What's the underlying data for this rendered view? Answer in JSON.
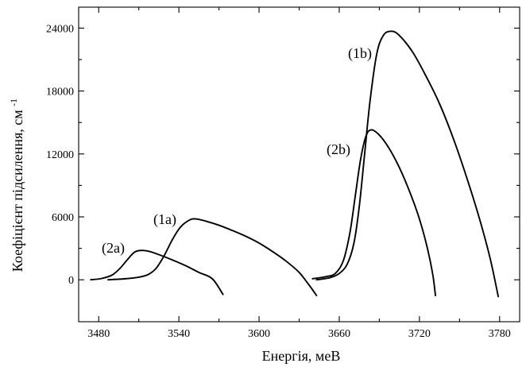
{
  "chart_data": {
    "type": "line",
    "title": "",
    "xlabel": "Енергія, меВ",
    "ylabel": "Коефіцієнт підсилення, см",
    "ylabel_superscript": "-1",
    "xlim": [
      3465,
      3795
    ],
    "ylim": [
      -4000,
      26000
    ],
    "x_ticks": [
      3480,
      3540,
      3600,
      3660,
      3720,
      3780
    ],
    "x_minor_ticks": [
      3450,
      3510,
      3570,
      3630,
      3690,
      3750
    ],
    "y_ticks": [
      0,
      6000,
      12000,
      18000,
      24000
    ],
    "y_minor_ticks": [
      3000,
      9000,
      15000,
      21000
    ],
    "grid": false,
    "legend": "none",
    "series": [
      {
        "name": "(2a)",
        "points": [
          [
            3474,
            0
          ],
          [
            3482,
            120
          ],
          [
            3490,
            450
          ],
          [
            3496,
            1100
          ],
          [
            3502,
            2000
          ],
          [
            3507,
            2650
          ],
          [
            3512,
            2800
          ],
          [
            3518,
            2700
          ],
          [
            3525,
            2400
          ],
          [
            3535,
            1900
          ],
          [
            3545,
            1350
          ],
          [
            3555,
            700
          ],
          [
            3565,
            100
          ],
          [
            3573,
            -1400
          ]
        ]
      },
      {
        "name": "(1a)",
        "points": [
          [
            3487,
            0
          ],
          [
            3500,
            100
          ],
          [
            3510,
            250
          ],
          [
            3517,
            500
          ],
          [
            3523,
            1100
          ],
          [
            3529,
            2300
          ],
          [
            3535,
            3800
          ],
          [
            3541,
            5000
          ],
          [
            3548,
            5700
          ],
          [
            3553,
            5800
          ],
          [
            3560,
            5600
          ],
          [
            3570,
            5200
          ],
          [
            3580,
            4700
          ],
          [
            3590,
            4150
          ],
          [
            3600,
            3500
          ],
          [
            3610,
            2700
          ],
          [
            3620,
            1800
          ],
          [
            3630,
            700
          ],
          [
            3638,
            -600
          ],
          [
            3643,
            -1500
          ]
        ]
      },
      {
        "name": "(2b)",
        "points": [
          [
            3640,
            100
          ],
          [
            3650,
            300
          ],
          [
            3657,
            600
          ],
          [
            3663,
            1800
          ],
          [
            3668,
            4500
          ],
          [
            3672,
            8000
          ],
          [
            3676,
            11500
          ],
          [
            3680,
            13700
          ],
          [
            3684,
            14300
          ],
          [
            3690,
            13800
          ],
          [
            3697,
            12600
          ],
          [
            3705,
            10700
          ],
          [
            3713,
            8300
          ],
          [
            3720,
            5800
          ],
          [
            3726,
            3000
          ],
          [
            3730,
            500
          ],
          [
            3732,
            -1500
          ]
        ]
      },
      {
        "name": "(1b)",
        "points": [
          [
            3643,
            0
          ],
          [
            3653,
            200
          ],
          [
            3660,
            600
          ],
          [
            3666,
            1500
          ],
          [
            3671,
            3500
          ],
          [
            3675,
            7000
          ],
          [
            3679,
            12000
          ],
          [
            3683,
            17000
          ],
          [
            3688,
            21500
          ],
          [
            3693,
            23300
          ],
          [
            3699,
            23700
          ],
          [
            3705,
            23300
          ],
          [
            3715,
            21700
          ],
          [
            3725,
            19400
          ],
          [
            3735,
            16800
          ],
          [
            3745,
            13600
          ],
          [
            3755,
            9900
          ],
          [
            3765,
            5800
          ],
          [
            3773,
            2000
          ],
          [
            3779,
            -1600
          ]
        ]
      }
    ]
  }
}
